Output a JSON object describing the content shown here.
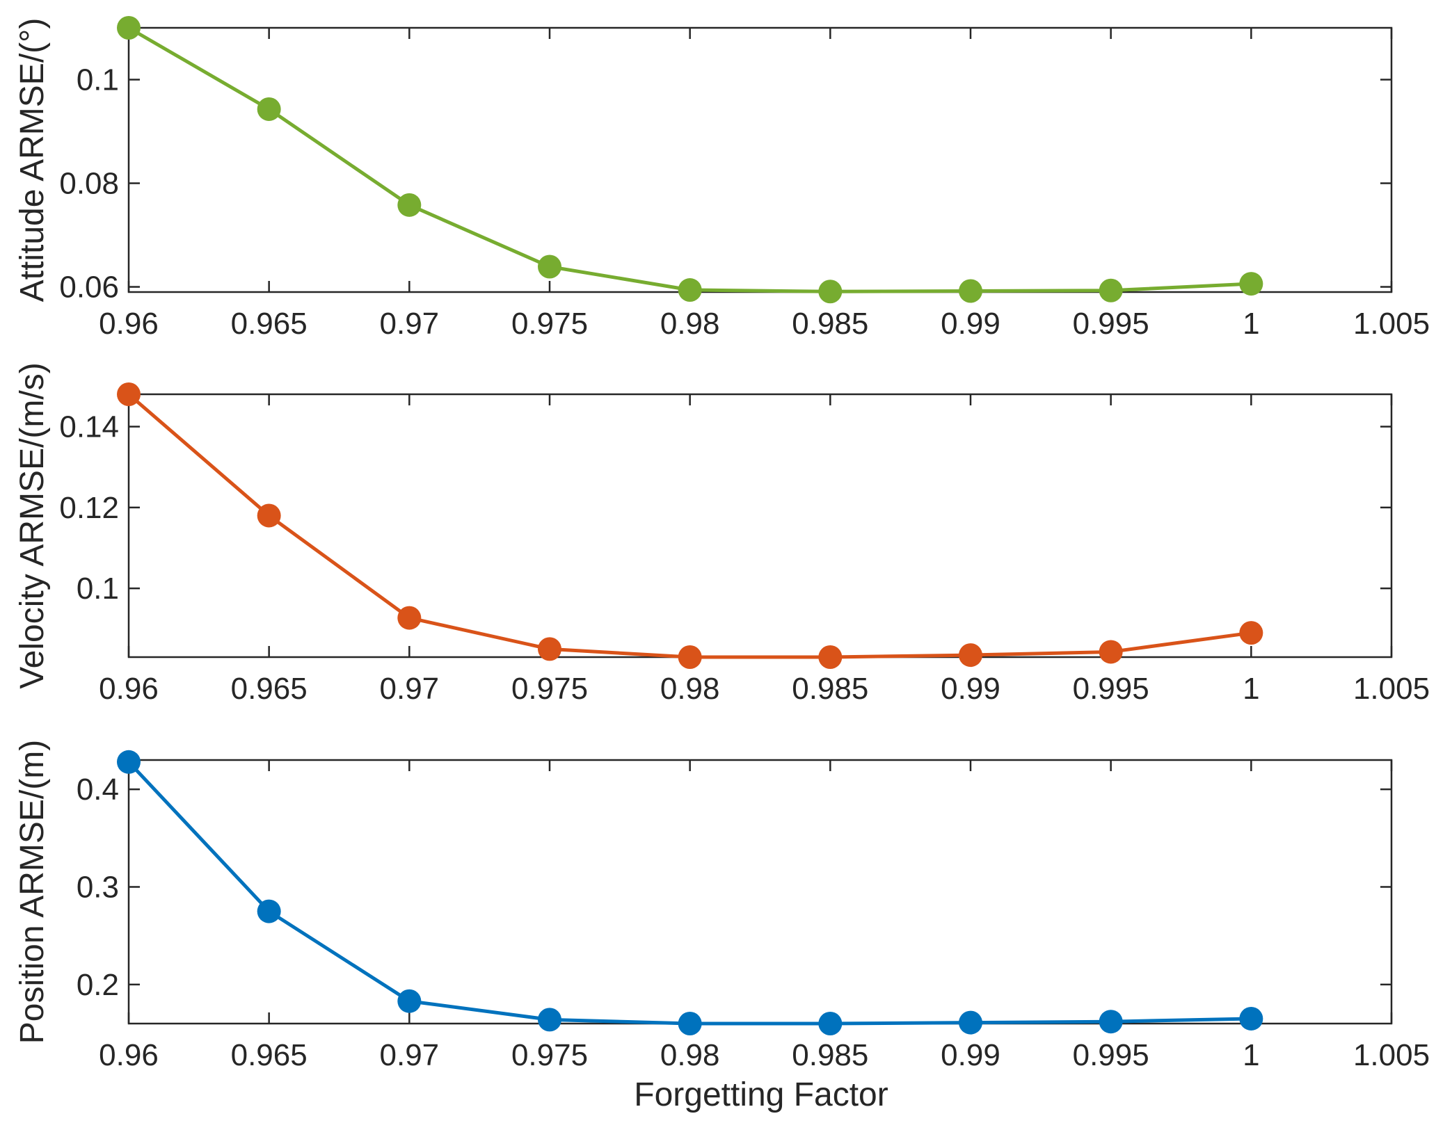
{
  "figure": {
    "xlabel": "Forgetting Factor"
  },
  "chart_data": [
    {
      "type": "line",
      "title": "",
      "xlabel": "",
      "ylabel": "Attitude ARMSE/(°)",
      "xlim": [
        0.96,
        1.005
      ],
      "ylim": [
        0.059,
        0.11
      ],
      "xticks": [
        0.96,
        0.965,
        0.97,
        0.975,
        0.98,
        0.985,
        0.99,
        0.995,
        1,
        1.005
      ],
      "xtick_labels": [
        "0.96",
        "0.965",
        "0.97",
        "0.975",
        "0.98",
        "0.985",
        "0.99",
        "0.995",
        "1",
        "1.005"
      ],
      "yticks": [
        0.06,
        0.08,
        0.1
      ],
      "ytick_labels": [
        "0.06",
        "0.08",
        "0.1"
      ],
      "grid": false,
      "color": "#77AC30",
      "series": [
        {
          "x": [
            0.96,
            0.965,
            0.97,
            0.975,
            0.98,
            0.985,
            0.99,
            0.995,
            1
          ],
          "y": [
            0.11,
            0.0943,
            0.0758,
            0.0639,
            0.0594,
            0.0591,
            0.0592,
            0.0593,
            0.0606
          ]
        }
      ]
    },
    {
      "type": "line",
      "title": "",
      "xlabel": "",
      "ylabel": "Velocity ARMSE/(m/s)",
      "xlim": [
        0.96,
        1.005
      ],
      "ylim": [
        0.083,
        0.148
      ],
      "xticks": [
        0.96,
        0.965,
        0.97,
        0.975,
        0.98,
        0.985,
        0.99,
        0.995,
        1,
        1.005
      ],
      "xtick_labels": [
        "0.96",
        "0.965",
        "0.97",
        "0.975",
        "0.98",
        "0.985",
        "0.99",
        "0.995",
        "1",
        "1.005"
      ],
      "yticks": [
        0.1,
        0.12,
        0.14
      ],
      "ytick_labels": [
        "0.1",
        "0.12",
        "0.14"
      ],
      "grid": false,
      "color": "#D95319",
      "series": [
        {
          "x": [
            0.96,
            0.965,
            0.97,
            0.975,
            0.98,
            0.985,
            0.99,
            0.995,
            1
          ],
          "y": [
            0.148,
            0.118,
            0.0927,
            0.085,
            0.083,
            0.083,
            0.0835,
            0.0843,
            0.089
          ]
        }
      ]
    },
    {
      "type": "line",
      "title": "",
      "xlabel": "",
      "ylabel": "Position ARMSE/(m)",
      "xlim": [
        0.96,
        1.005
      ],
      "ylim": [
        0.16,
        0.43
      ],
      "xticks": [
        0.96,
        0.965,
        0.97,
        0.975,
        0.98,
        0.985,
        0.99,
        0.995,
        1,
        1.005
      ],
      "xtick_labels": [
        "0.96",
        "0.965",
        "0.97",
        "0.975",
        "0.98",
        "0.985",
        "0.99",
        "0.995",
        "1",
        "1.005"
      ],
      "yticks": [
        0.2,
        0.3,
        0.4
      ],
      "ytick_labels": [
        "0.2",
        "0.3",
        "0.4"
      ],
      "grid": false,
      "color": "#0072BD",
      "series": [
        {
          "x": [
            0.96,
            0.965,
            0.97,
            0.975,
            0.98,
            0.985,
            0.99,
            0.995,
            1
          ],
          "y": [
            0.428,
            0.275,
            0.183,
            0.164,
            0.16,
            0.16,
            0.161,
            0.162,
            0.165
          ]
        }
      ]
    }
  ]
}
